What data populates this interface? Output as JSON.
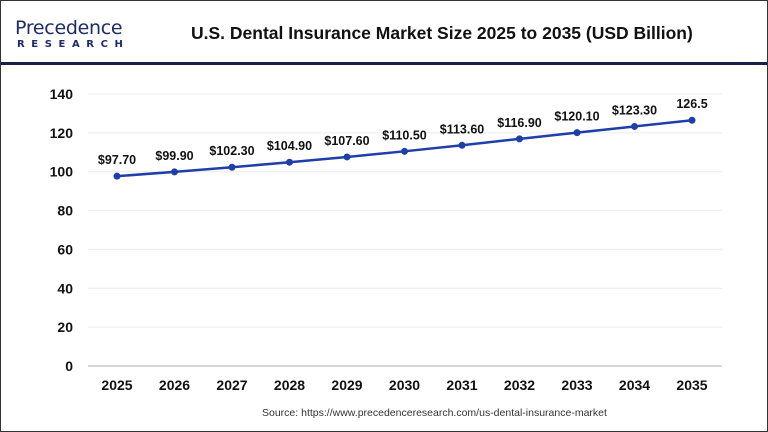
{
  "header": {
    "logo_name": "Precedence",
    "logo_sub": "RESEARCH",
    "title": "U.S. Dental Insurance Market Size 2025 to 2035 (USD Billion)"
  },
  "footer": {
    "source": "Source: https://www.precedenceresearch.com/us-dental-insurance-market"
  },
  "chart_data": {
    "type": "line",
    "title": "U.S. Dental Insurance Market Size 2025 to 2035 (USD Billion)",
    "xlabel": "",
    "ylabel": "",
    "categories": [
      "2025",
      "2026",
      "2027",
      "2028",
      "2029",
      "2030",
      "2031",
      "2032",
      "2033",
      "2034",
      "2035"
    ],
    "series": [
      {
        "name": "Market Size (USD Billion)",
        "color": "#1f3fa8",
        "values": [
          97.7,
          99.9,
          102.3,
          104.9,
          107.6,
          110.5,
          113.6,
          116.9,
          120.1,
          123.3,
          126.5
        ],
        "labels": [
          "$97.70",
          "$99.90",
          "$102.30",
          "$104.90",
          "$107.60",
          "$110.50",
          "$113.60",
          "$116.90",
          "$120.10",
          "$123.30",
          "126.5"
        ]
      }
    ],
    "ylim": [
      0,
      140
    ],
    "yticks": [
      0,
      20,
      40,
      60,
      80,
      100,
      120,
      140
    ],
    "grid": true,
    "legend": "none"
  }
}
